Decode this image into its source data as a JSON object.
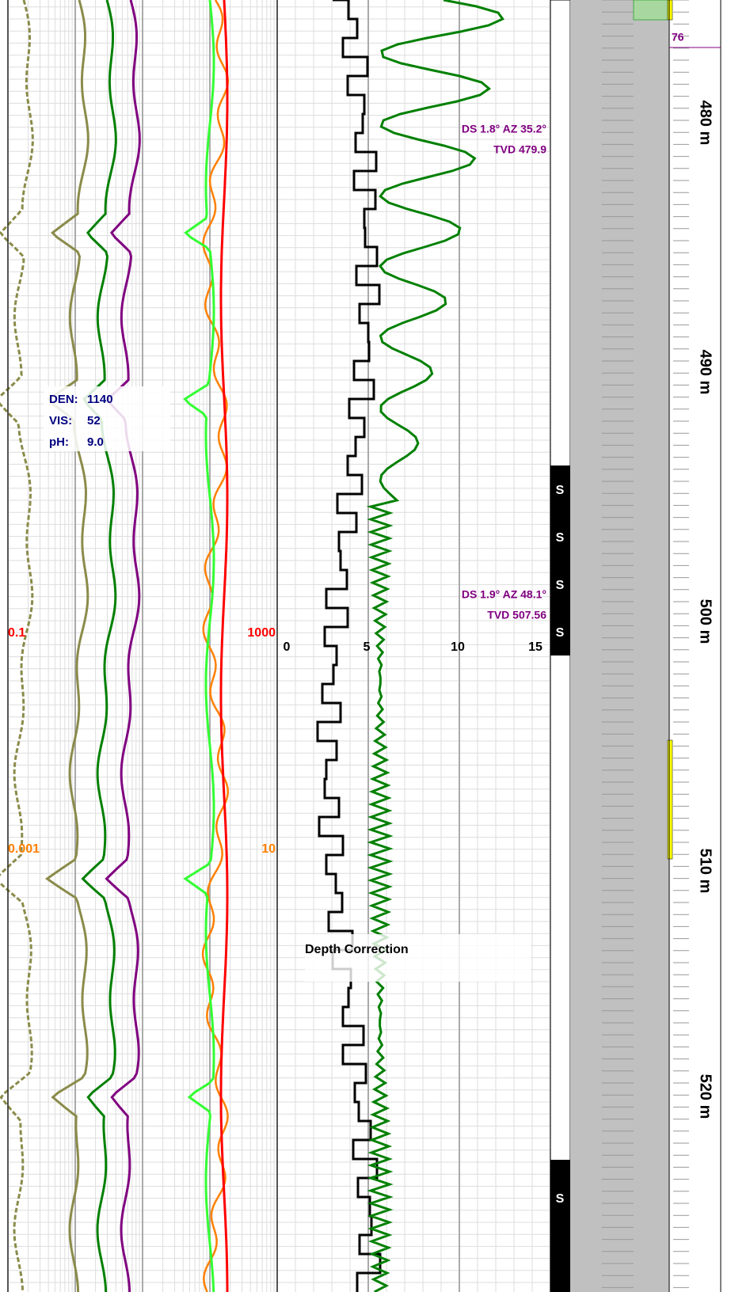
{
  "log_scales": {
    "track1_red": {
      "left": "0.1",
      "right": "1000"
    },
    "track1_orange": {
      "left": "0.001",
      "right": "10"
    },
    "track2": [
      "0",
      "5",
      "10",
      "15"
    ]
  },
  "annotations": [
    {
      "line1": "DS 1.8° AZ 35.2°",
      "line2": "TVD 479.9"
    },
    {
      "line1": "DS 1.9° AZ 48.1°",
      "line2": "TVD 507.56"
    }
  ],
  "mud_report": {
    "rows": [
      [
        "DEN:",
        "1140"
      ],
      [
        "VIS:",
        "52"
      ],
      [
        "pH:",
        "9.0"
      ]
    ]
  },
  "event": "Depth Correction",
  "lithology_marks": [
    "S",
    "S",
    "S",
    "S",
    "S"
  ],
  "top_label": "76",
  "depth_labels": [
    "480 m",
    "490 m",
    "500 m",
    "510 m",
    "520 m"
  ]
}
